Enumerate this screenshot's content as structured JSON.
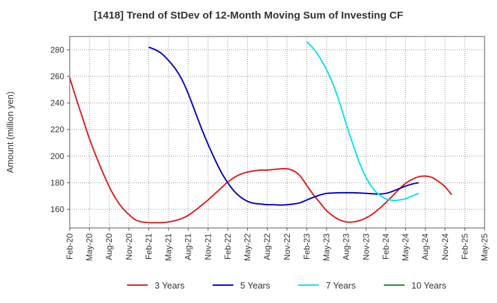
{
  "chart_data": {
    "type": "line",
    "title": "[1418]  Trend of StDev of 12-Month Moving Sum of Investing CF",
    "xlabel": "",
    "ylabel": "Amount (million yen)",
    "x_ticks": [
      "Feb-20",
      "May-20",
      "Aug-20",
      "Nov-20",
      "Feb-21",
      "May-21",
      "Aug-21",
      "Nov-21",
      "Feb-22",
      "May-22",
      "Aug-22",
      "Nov-22",
      "Feb-23",
      "May-23",
      "Aug-23",
      "Nov-23",
      "Feb-24",
      "May-24",
      "Aug-24",
      "Nov-24",
      "Feb-25",
      "May-25"
    ],
    "y_ticks": [
      160,
      180,
      200,
      220,
      240,
      260,
      280
    ],
    "xlim": [
      "Feb-20",
      "May-25"
    ],
    "ylim": [
      146,
      290
    ],
    "grid": true,
    "legend_position": "bottom",
    "series": [
      {
        "name": "3 Years",
        "color": "#e41a1c",
        "points": [
          [
            "Feb-20",
            259
          ],
          [
            "Mar-20",
            243
          ],
          [
            "Apr-20",
            228
          ],
          [
            "May-20",
            213
          ],
          [
            "Jun-20",
            200
          ],
          [
            "Jul-20",
            188
          ],
          [
            "Aug-20",
            177
          ],
          [
            "Sep-20",
            168
          ],
          [
            "Oct-20",
            161
          ],
          [
            "Nov-20",
            156
          ],
          [
            "Dec-20",
            152
          ],
          [
            "Jan-21",
            150.5
          ],
          [
            "Feb-21",
            150
          ],
          [
            "Mar-21",
            150
          ],
          [
            "Apr-21",
            150
          ],
          [
            "May-21",
            150.5
          ],
          [
            "Jun-21",
            151.5
          ],
          [
            "Jul-21",
            153
          ],
          [
            "Aug-21",
            155.5
          ],
          [
            "Sep-21",
            159
          ],
          [
            "Oct-21",
            163
          ],
          [
            "Nov-21",
            167
          ],
          [
            "Dec-21",
            171.5
          ],
          [
            "Jan-22",
            176
          ],
          [
            "Feb-22",
            180.5
          ],
          [
            "Mar-22",
            184
          ],
          [
            "Apr-22",
            186.5
          ],
          [
            "May-22",
            188
          ],
          [
            "Jun-22",
            189
          ],
          [
            "Jul-22",
            189.5
          ],
          [
            "Aug-22",
            189.5
          ],
          [
            "Sep-22",
            190
          ],
          [
            "Oct-22",
            190.5
          ],
          [
            "Nov-22",
            190.5
          ],
          [
            "Dec-22",
            189
          ],
          [
            "Jan-23",
            185
          ],
          [
            "Feb-23",
            178
          ],
          [
            "Mar-23",
            171
          ],
          [
            "Apr-23",
            165
          ],
          [
            "May-23",
            159
          ],
          [
            "Jun-23",
            155
          ],
          [
            "Jul-23",
            152
          ],
          [
            "Aug-23",
            150.5
          ],
          [
            "Sep-23",
            150.5
          ],
          [
            "Oct-23",
            151.5
          ],
          [
            "Nov-23",
            153.5
          ],
          [
            "Dec-23",
            156.5
          ],
          [
            "Jan-24",
            160.5
          ],
          [
            "Feb-24",
            165
          ],
          [
            "Mar-24",
            170
          ],
          [
            "Apr-24",
            175
          ],
          [
            "May-24",
            179.5
          ],
          [
            "Jun-24",
            182.5
          ],
          [
            "Jul-24",
            184.5
          ],
          [
            "Aug-24",
            185
          ],
          [
            "Sep-24",
            184
          ],
          [
            "Oct-24",
            181
          ],
          [
            "Nov-24",
            177
          ],
          [
            "Dec-24",
            171
          ]
        ]
      },
      {
        "name": "5 Years",
        "color": "#0000cd",
        "points": [
          [
            "Feb-21",
            282
          ],
          [
            "Mar-21",
            280
          ],
          [
            "Apr-21",
            277
          ],
          [
            "May-21",
            272
          ],
          [
            "Jun-21",
            266
          ],
          [
            "Jul-21",
            258
          ],
          [
            "Aug-21",
            247
          ],
          [
            "Sep-21",
            234
          ],
          [
            "Oct-21",
            221
          ],
          [
            "Nov-21",
            209
          ],
          [
            "Dec-21",
            198
          ],
          [
            "Jan-22",
            188
          ],
          [
            "Feb-22",
            180
          ],
          [
            "Mar-22",
            173.5
          ],
          [
            "Apr-22",
            169
          ],
          [
            "May-22",
            166
          ],
          [
            "Jun-22",
            164.5
          ],
          [
            "Jul-22",
            164
          ],
          [
            "Aug-22",
            163.5
          ],
          [
            "Sep-22",
            163.5
          ],
          [
            "Oct-22",
            163.2
          ],
          [
            "Nov-22",
            163.5
          ],
          [
            "Dec-22",
            164
          ],
          [
            "Jan-23",
            165
          ],
          [
            "Feb-23",
            167
          ],
          [
            "Mar-23",
            169
          ],
          [
            "Apr-23",
            170.8
          ],
          [
            "May-23",
            172
          ],
          [
            "Jun-23",
            172.3
          ],
          [
            "Jul-23",
            172.5
          ],
          [
            "Aug-23",
            172.5
          ],
          [
            "Sep-23",
            172.5
          ],
          [
            "Oct-23",
            172.3
          ],
          [
            "Nov-23",
            172
          ],
          [
            "Dec-23",
            171.7
          ],
          [
            "Jan-24",
            171.5
          ],
          [
            "Feb-24",
            172
          ],
          [
            "Mar-24",
            173.5
          ],
          [
            "Apr-24",
            175.5
          ],
          [
            "May-24",
            177.5
          ],
          [
            "Jun-24",
            179
          ],
          [
            "Jul-24",
            180
          ]
        ]
      },
      {
        "name": "7 Years",
        "color": "#00e5ee",
        "points": [
          [
            "Feb-23",
            286
          ],
          [
            "Mar-23",
            281
          ],
          [
            "Apr-23",
            274
          ],
          [
            "May-23",
            265
          ],
          [
            "Jun-23",
            254
          ],
          [
            "Jul-23",
            240
          ],
          [
            "Aug-23",
            224
          ],
          [
            "Sep-23",
            209
          ],
          [
            "Oct-23",
            195
          ],
          [
            "Nov-23",
            184
          ],
          [
            "Dec-23",
            176
          ],
          [
            "Jan-24",
            171
          ],
          [
            "Feb-24",
            168
          ],
          [
            "Mar-24",
            166.8
          ],
          [
            "Apr-24",
            167
          ],
          [
            "May-24",
            168
          ],
          [
            "Jun-24",
            170
          ],
          [
            "Jul-24",
            172
          ]
        ]
      },
      {
        "name": "10 Years",
        "color": "#228b22",
        "points": []
      }
    ]
  }
}
